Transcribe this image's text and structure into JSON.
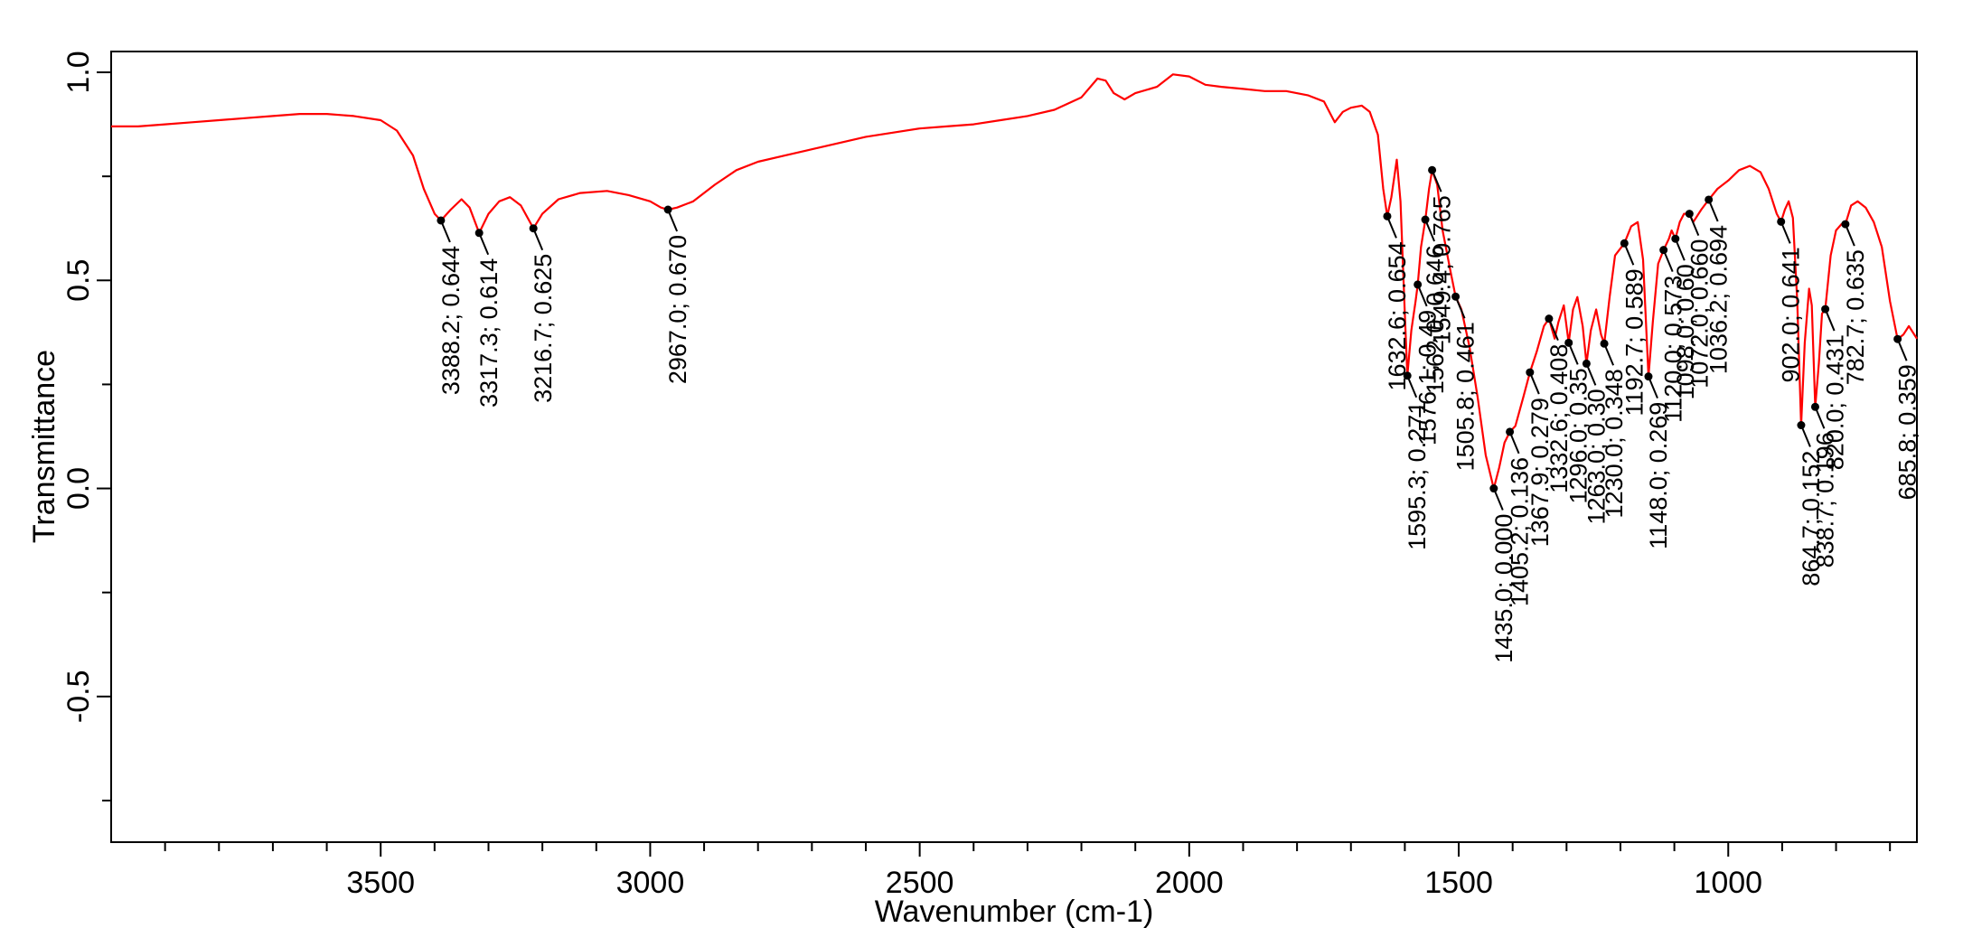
{
  "chart_data": {
    "type": "line",
    "xlabel": "Wavenumber (cm-1)",
    "ylabel": "Transmittance",
    "xlim": [
      4000,
      650
    ],
    "ylim": [
      -0.85,
      1.05
    ],
    "x_ticks": [
      3500,
      3000,
      2500,
      2000,
      1500,
      1000
    ],
    "y_ticks": [
      1.0,
      0.5,
      0.0,
      -0.5
    ],
    "y_tick_labels": [
      "1.0",
      "0.5",
      "0.0",
      "-0.5"
    ],
    "line_color": "#ff0000",
    "grid": false,
    "series": [
      {
        "points": [
          [
            4000,
            0.87
          ],
          [
            3950,
            0.87
          ],
          [
            3900,
            0.875
          ],
          [
            3850,
            0.88
          ],
          [
            3800,
            0.885
          ],
          [
            3750,
            0.89
          ],
          [
            3700,
            0.895
          ],
          [
            3650,
            0.9
          ],
          [
            3600,
            0.9
          ],
          [
            3550,
            0.895
          ],
          [
            3500,
            0.885
          ],
          [
            3470,
            0.86
          ],
          [
            3440,
            0.8
          ],
          [
            3420,
            0.72
          ],
          [
            3400,
            0.66
          ],
          [
            3388.2,
            0.644
          ],
          [
            3370,
            0.67
          ],
          [
            3350,
            0.695
          ],
          [
            3335,
            0.675
          ],
          [
            3317.3,
            0.614
          ],
          [
            3300,
            0.66
          ],
          [
            3280,
            0.69
          ],
          [
            3260,
            0.7
          ],
          [
            3240,
            0.68
          ],
          [
            3216.7,
            0.625
          ],
          [
            3200,
            0.66
          ],
          [
            3170,
            0.695
          ],
          [
            3130,
            0.71
          ],
          [
            3080,
            0.715
          ],
          [
            3040,
            0.705
          ],
          [
            3000,
            0.69
          ],
          [
            2980,
            0.675
          ],
          [
            2967,
            0.67
          ],
          [
            2950,
            0.675
          ],
          [
            2920,
            0.69
          ],
          [
            2880,
            0.73
          ],
          [
            2840,
            0.765
          ],
          [
            2800,
            0.785
          ],
          [
            2750,
            0.8
          ],
          [
            2700,
            0.815
          ],
          [
            2650,
            0.83
          ],
          [
            2600,
            0.845
          ],
          [
            2550,
            0.855
          ],
          [
            2500,
            0.865
          ],
          [
            2450,
            0.87
          ],
          [
            2400,
            0.875
          ],
          [
            2350,
            0.885
          ],
          [
            2300,
            0.895
          ],
          [
            2250,
            0.91
          ],
          [
            2200,
            0.94
          ],
          [
            2170,
            0.985
          ],
          [
            2155,
            0.98
          ],
          [
            2140,
            0.95
          ],
          [
            2120,
            0.935
          ],
          [
            2100,
            0.95
          ],
          [
            2060,
            0.965
          ],
          [
            2030,
            0.995
          ],
          [
            2000,
            0.99
          ],
          [
            1970,
            0.97
          ],
          [
            1940,
            0.965
          ],
          [
            1900,
            0.96
          ],
          [
            1860,
            0.955
          ],
          [
            1820,
            0.955
          ],
          [
            1780,
            0.945
          ],
          [
            1750,
            0.93
          ],
          [
            1730,
            0.88
          ],
          [
            1715,
            0.905
          ],
          [
            1700,
            0.915
          ],
          [
            1680,
            0.92
          ],
          [
            1665,
            0.905
          ],
          [
            1650,
            0.85
          ],
          [
            1640,
            0.72
          ],
          [
            1632.6,
            0.654
          ],
          [
            1625,
            0.7
          ],
          [
            1615,
            0.79
          ],
          [
            1608,
            0.69
          ],
          [
            1600,
            0.42
          ],
          [
            1595.3,
            0.271
          ],
          [
            1588,
            0.38
          ],
          [
            1580,
            0.45
          ],
          [
            1576.1,
            0.49
          ],
          [
            1570,
            0.58
          ],
          [
            1562,
            0.646
          ],
          [
            1555,
            0.72
          ],
          [
            1549.4,
            0.765
          ],
          [
            1540,
            0.73
          ],
          [
            1530,
            0.62
          ],
          [
            1515,
            0.52
          ],
          [
            1505.8,
            0.461
          ],
          [
            1495,
            0.43
          ],
          [
            1480,
            0.34
          ],
          [
            1465,
            0.22
          ],
          [
            1450,
            0.08
          ],
          [
            1435,
            0.0
          ],
          [
            1425,
            0.05
          ],
          [
            1415,
            0.11
          ],
          [
            1405.2,
            0.136
          ],
          [
            1395,
            0.15
          ],
          [
            1380,
            0.22
          ],
          [
            1367.9,
            0.279
          ],
          [
            1355,
            0.33
          ],
          [
            1342,
            0.39
          ],
          [
            1332.6,
            0.408
          ],
          [
            1322,
            0.36
          ],
          [
            1315,
            0.4
          ],
          [
            1305,
            0.44
          ],
          [
            1296,
            0.35
          ],
          [
            1288,
            0.43
          ],
          [
            1280,
            0.46
          ],
          [
            1270,
            0.39
          ],
          [
            1263,
            0.3
          ],
          [
            1255,
            0.38
          ],
          [
            1245,
            0.43
          ],
          [
            1236,
            0.37
          ],
          [
            1230,
            0.348
          ],
          [
            1220,
            0.46
          ],
          [
            1210,
            0.56
          ],
          [
            1192.7,
            0.589
          ],
          [
            1180,
            0.63
          ],
          [
            1168,
            0.64
          ],
          [
            1158,
            0.55
          ],
          [
            1148,
            0.269
          ],
          [
            1140,
            0.4
          ],
          [
            1130,
            0.54
          ],
          [
            1120,
            0.573
          ],
          [
            1110,
            0.6
          ],
          [
            1105,
            0.62
          ],
          [
            1098,
            0.6
          ],
          [
            1090,
            0.64
          ],
          [
            1082,
            0.66
          ],
          [
            1072,
            0.66
          ],
          [
            1065,
            0.64
          ],
          [
            1050,
            0.67
          ],
          [
            1036.2,
            0.694
          ],
          [
            1020,
            0.72
          ],
          [
            1000,
            0.74
          ],
          [
            980,
            0.765
          ],
          [
            960,
            0.775
          ],
          [
            940,
            0.76
          ],
          [
            925,
            0.72
          ],
          [
            910,
            0.66
          ],
          [
            902,
            0.641
          ],
          [
            895,
            0.67
          ],
          [
            888,
            0.69
          ],
          [
            880,
            0.65
          ],
          [
            872,
            0.45
          ],
          [
            864.7,
            0.152
          ],
          [
            858,
            0.35
          ],
          [
            850,
            0.48
          ],
          [
            845,
            0.44
          ],
          [
            838.7,
            0.196
          ],
          [
            832,
            0.3
          ],
          [
            826,
            0.42
          ],
          [
            820,
            0.431
          ],
          [
            810,
            0.56
          ],
          [
            800,
            0.62
          ],
          [
            790,
            0.635
          ],
          [
            782.7,
            0.635
          ],
          [
            772,
            0.68
          ],
          [
            760,
            0.69
          ],
          [
            745,
            0.675
          ],
          [
            730,
            0.64
          ],
          [
            715,
            0.58
          ],
          [
            700,
            0.45
          ],
          [
            685.8,
            0.359
          ],
          [
            675,
            0.37
          ],
          [
            665,
            0.39
          ],
          [
            650,
            0.36
          ]
        ]
      }
    ],
    "peaks": [
      {
        "x": 3388.2,
        "y": 0.644,
        "label": "3388.2; 0.644"
      },
      {
        "x": 3317.3,
        "y": 0.614,
        "label": "3317.3; 0.614"
      },
      {
        "x": 3216.7,
        "y": 0.625,
        "label": "3216.7; 0.625"
      },
      {
        "x": 2967.0,
        "y": 0.67,
        "label": "2967.0; 0.670"
      },
      {
        "x": 1632.6,
        "y": 0.654,
        "label": "1632.6; 0.654"
      },
      {
        "x": 1595.3,
        "y": 0.271,
        "label": "1595.3; 0.271"
      },
      {
        "x": 1576.1,
        "y": 0.49,
        "label": "1576.1; 0.49"
      },
      {
        "x": 1562.0,
        "y": 0.646,
        "label": "1562.0; 0.646"
      },
      {
        "x": 1549.4,
        "y": 0.765,
        "label": "1549.4; 0.765"
      },
      {
        "x": 1505.8,
        "y": 0.461,
        "label": "1505.8; 0.461"
      },
      {
        "x": 1435.0,
        "y": 0.0,
        "label": "1435.0; 0.000"
      },
      {
        "x": 1405.2,
        "y": 0.136,
        "label": "1405.2; 0.136"
      },
      {
        "x": 1367.9,
        "y": 0.279,
        "label": "1367.9; 0.279"
      },
      {
        "x": 1332.6,
        "y": 0.408,
        "label": "1332.6; 0.408"
      },
      {
        "x": 1296.0,
        "y": 0.35,
        "label": "1296.0; 0.35"
      },
      {
        "x": 1263.0,
        "y": 0.3,
        "label": "1263.0; 0.30"
      },
      {
        "x": 1230.0,
        "y": 0.348,
        "label": "1230.0; 0.348"
      },
      {
        "x": 1192.7,
        "y": 0.589,
        "label": "1192.7; 0.589"
      },
      {
        "x": 1148.0,
        "y": 0.269,
        "label": "1148.0; 0.269"
      },
      {
        "x": 1120.0,
        "y": 0.573,
        "label": "1120.0; 0.573"
      },
      {
        "x": 1098.0,
        "y": 0.6,
        "label": "1098.0; 0.60"
      },
      {
        "x": 1072.0,
        "y": 0.66,
        "label": "1072.0; 0.660"
      },
      {
        "x": 1036.2,
        "y": 0.694,
        "label": "1036.2; 0.694"
      },
      {
        "x": 902.0,
        "y": 0.641,
        "label": "902.0; 0.641"
      },
      {
        "x": 864.7,
        "y": 0.152,
        "label": "864.7; 0.152"
      },
      {
        "x": 838.7,
        "y": 0.196,
        "label": "838.7; 0.196"
      },
      {
        "x": 820.0,
        "y": 0.431,
        "label": "820.0; 0.431"
      },
      {
        "x": 782.7,
        "y": 0.635,
        "label": "782.7; 0.635"
      },
      {
        "x": 685.8,
        "y": 0.359,
        "label": "685.8; 0.359"
      }
    ]
  }
}
